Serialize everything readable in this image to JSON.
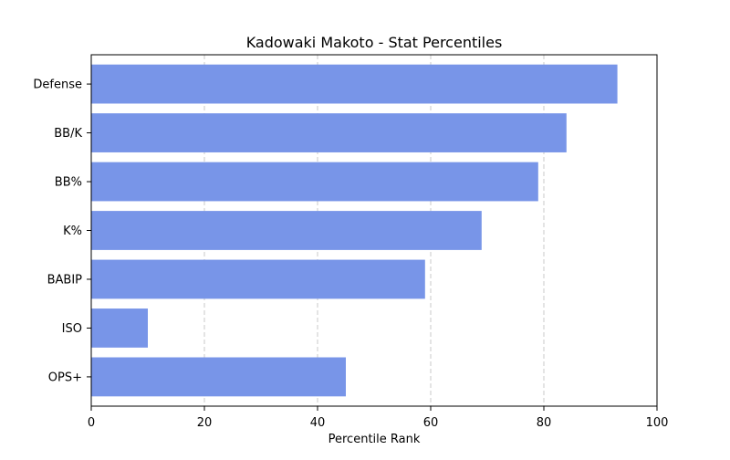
{
  "chart_data": {
    "type": "bar",
    "orientation": "horizontal",
    "title": "Kadowaki Makoto - Stat Percentiles",
    "xlabel": "Percentile Rank",
    "ylabel": "",
    "categories": [
      "Defense",
      "BB/K",
      "BB%",
      "K%",
      "BABIP",
      "ISO",
      "OPS+"
    ],
    "values": [
      93,
      84,
      79,
      69,
      59,
      10,
      45
    ],
    "xlim": [
      0,
      100
    ],
    "xticks": [
      0,
      20,
      40,
      60,
      80,
      100
    ],
    "grid": "x-dashed",
    "bar_color": "#7895e8"
  }
}
